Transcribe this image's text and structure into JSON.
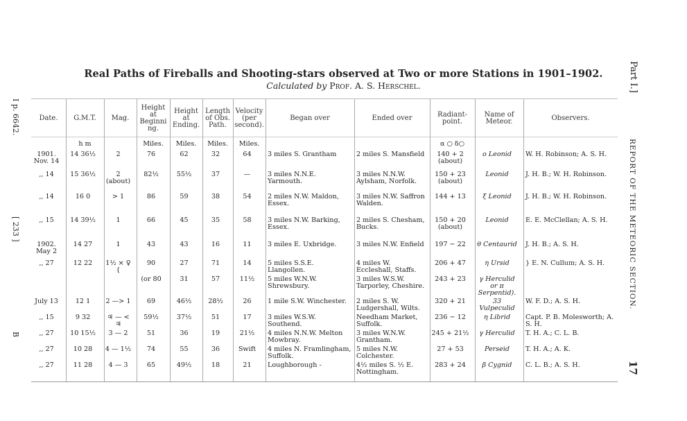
{
  "title": "Real Paths of Fireballs and Shooting-stars observed at Two or more Stations in 1901–1902.",
  "subtitle": {
    "prefix": "Calculated by",
    "author": "Prof. A. S. Herschel."
  },
  "margin_left": {
    "ref": "I p. 6642.",
    "page": "[ 233 ]",
    "mark": "B"
  },
  "margin_right": {
    "part": "Part I.]",
    "running_head": "REPORT OF THE METEORIC SECTION.",
    "page_number": "17"
  },
  "table": {
    "headers": [
      "Date.",
      "G.M.T.",
      "Mag.",
      "Height at Beginning.",
      "Height at Ending.",
      "Length of Obs. Path.",
      "Velocity (per second).",
      "Began over",
      "Ended over",
      "Radiant-point.",
      "Name of Meteor.",
      "Observers."
    ],
    "units": {
      "gmt": "h   m",
      "height_beg": "Miles.",
      "height_end": "Miles.",
      "length": "Miles.",
      "velocity": "Miles.",
      "radiant": "α ○      δ○"
    },
    "rows": [
      {
        "date": "1901. Nov. 14",
        "gmt": "14  36½",
        "mag": "2",
        "hbeg": "76",
        "hend": "62",
        "len": "32",
        "vel": "64",
        "began": "3 miles S. Grantham",
        "ended": "2 miles S. Mansfield",
        "radiant": "140 + 2 (about)",
        "name": "o Leonid",
        "observers": "W. H. Robinson; A. S. H."
      },
      {
        "date": ",,  14",
        "gmt": "15  36½",
        "mag": "2 (about)",
        "hbeg": "82½",
        "hend": "55½",
        "len": "37",
        "vel": "—",
        "began": "3 miles N.N.E. Yarmouth.",
        "ended": "3 miles N.N.W. Aylsham, Norfolk.",
        "radiant": "150 + 23 (about)",
        "name": "Leonid",
        "observers": "J. H. B.; W. H. Robinson."
      },
      {
        "date": ",,  14",
        "gmt": "16   0",
        "mag": "> 1",
        "hbeg": "86",
        "hend": "59",
        "len": "38",
        "vel": "54",
        "began": "2 miles N.W. Maldon, Essex.",
        "ended": "3 miles N.W. Saffron Walden.",
        "radiant": "144 + 13",
        "name": "ξ Leonid",
        "observers": "J. H. B.; W. H. Robinson."
      },
      {
        "date": ",,  15",
        "gmt": "14  39½",
        "mag": "1",
        "hbeg": "66",
        "hend": "45",
        "len": "35",
        "vel": "58",
        "began": "3 miles N.W. Barking, Essex.",
        "ended": "2 miles S. Chesham, Bucks.",
        "radiant": "150 + 20 (about)",
        "name": "Leonid",
        "observers": "E. E. McClellan; A. S. H."
      },
      {
        "date": "1902. May  2",
        "gmt": "14  27",
        "mag": "1",
        "hbeg": "43",
        "hend": "43",
        "len": "16",
        "vel": "11",
        "began": "3 miles E. Uxbridge.",
        "ended": "3 miles N.W. Enfield",
        "radiant": "197 − 22",
        "name": "θ Centaurid",
        "observers": "J. H. B.; A. S. H."
      },
      {
        "date": ",,  27",
        "gmt": "12  22",
        "mag": "1½ × ♀ {",
        "hbeg": "90",
        "hend": "27",
        "len": "71",
        "vel": "14",
        "began": "5 miles S.S.E. Llangollen.",
        "ended": "4 miles W. Eccleshall, Staffs.",
        "radiant": "206 + 47",
        "name": "η Ursid",
        "observers": "} E. N. Cullum; A. S. H."
      },
      {
        "date": "",
        "gmt": "",
        "mag": "",
        "hbeg": "(or 80",
        "hend": "31",
        "len": "57",
        "vel": "11½",
        "began": "5 miles W.N.W. Shrewsbury.",
        "ended": "3 miles W.S.W. Tarporley, Cheshire.",
        "radiant": "243 + 23",
        "name": "γ Herculid or π Serpentid).",
        "observers": ""
      },
      {
        "date": "July 13",
        "gmt": "12   1",
        "mag": "2 —> 1",
        "hbeg": "69",
        "hend": "46½",
        "len": "28½",
        "vel": "26",
        "began": "1 mile S.W. Winchester.",
        "ended": "2 miles S. W. Ludgershall, Wilts.",
        "radiant": "320 + 21",
        "name": "33 Vulpeculid",
        "observers": "W. F. D.; A. S. H."
      },
      {
        "date": ",,  15",
        "gmt": "9  32",
        "mag": "♃ — < ♃",
        "hbeg": "59½",
        "hend": "37½",
        "len": "51",
        "vel": "17",
        "began": "3 miles W.S.W. Southend.",
        "ended": "Needham Market, Suffolk.",
        "radiant": "236 − 12",
        "name": "η Librid",
        "observers": "Capt. P. B. Molesworth; A. S. H."
      },
      {
        "date": ",,  27",
        "gmt": "10  15½",
        "mag": "3 — 2",
        "hbeg": "51",
        "hend": "36",
        "len": "19",
        "vel": "21½",
        "began": "4 miles N.N.W. Melton Mowbray.",
        "ended": "3 miles W.N.W. Grantham.",
        "radiant": "245 + 21½",
        "name": "γ Herculid",
        "observers": "T. H. A.; C. L. B."
      },
      {
        "date": ",,  27",
        "gmt": "10  28",
        "mag": "4 — 1½",
        "hbeg": "74",
        "hend": "55",
        "len": "36",
        "vel": "Swift",
        "began": "4 miles N. Framlingham, Suffolk.",
        "ended": "5 miles N.W. Colchester.",
        "radiant": "27 + 53",
        "name": "Perseid",
        "observers": "T. H. A.; A. K."
      },
      {
        "date": ",,  27",
        "gmt": "11  28",
        "mag": "4 — 3",
        "hbeg": "65",
        "hend": "49½",
        "len": "18",
        "vel": "21",
        "began": "Loughborough  -",
        "ended": "4½ miles S. ½ E. Nottingham.",
        "radiant": "283 + 24",
        "name": "β Cygnid",
        "observers": "C. L. B.; A. S. H."
      }
    ]
  }
}
